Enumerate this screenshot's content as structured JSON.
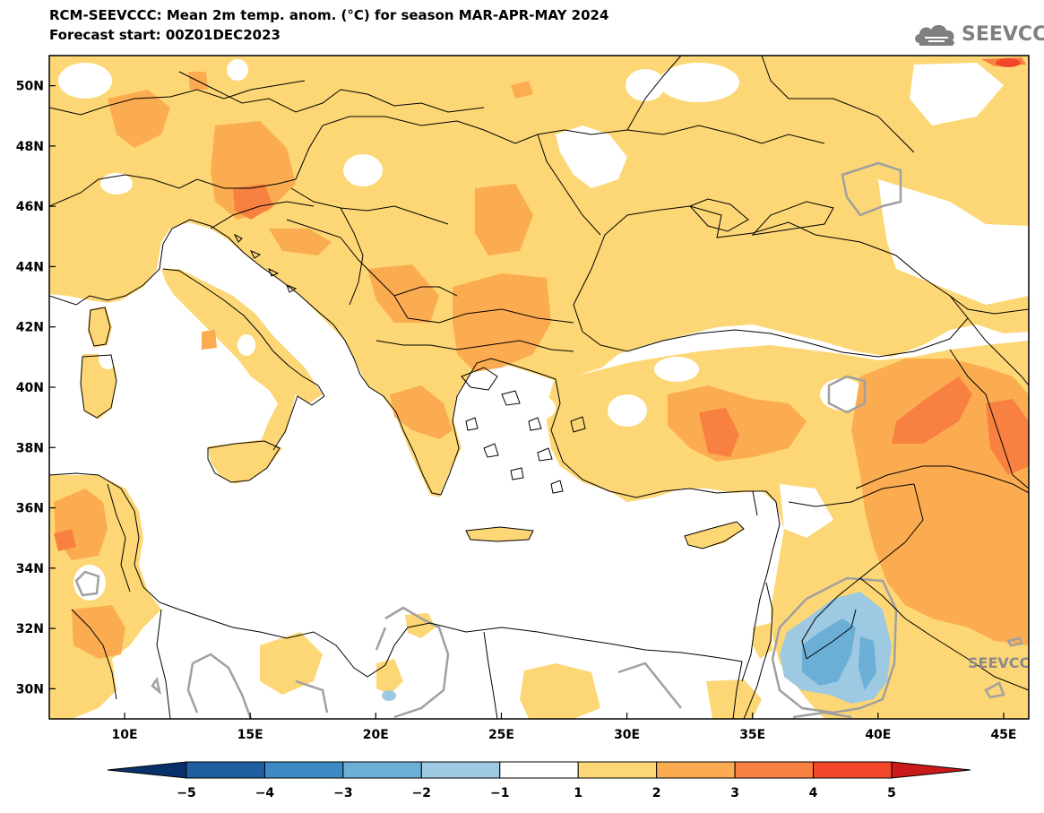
{
  "header": {
    "title_line1": "RCM-SEEVCCC: Mean 2m temp. anom. (°C) for season MAR-APR-MAY 2024",
    "title_line2": "Forecast start: 00Z01DEC2023"
  },
  "logo": {
    "text": "SEEVCCC",
    "icon": "cloud-icon"
  },
  "watermark": "SEEVCCC",
  "map": {
    "extent": {
      "lon_min": 7.0,
      "lon_max": 46.0,
      "lat_min": 29.0,
      "lat_max": 51.0
    },
    "lon_ticks": [
      {
        "value": 10,
        "label": "10E"
      },
      {
        "value": 15,
        "label": "15E"
      },
      {
        "value": 20,
        "label": "20E"
      },
      {
        "value": 25,
        "label": "25E"
      },
      {
        "value": 30,
        "label": "30E"
      },
      {
        "value": 35,
        "label": "35E"
      },
      {
        "value": 40,
        "label": "40E"
      },
      {
        "value": 45,
        "label": "45E"
      }
    ],
    "lat_ticks": [
      {
        "value": 50,
        "label": "50N"
      },
      {
        "value": 48,
        "label": "48N"
      },
      {
        "value": 46,
        "label": "46N"
      },
      {
        "value": 44,
        "label": "44N"
      },
      {
        "value": 42,
        "label": "42N"
      },
      {
        "value": 40,
        "label": "40N"
      },
      {
        "value": 38,
        "label": "38N"
      },
      {
        "value": 36,
        "label": "36N"
      },
      {
        "value": 34,
        "label": "34N"
      },
      {
        "value": 32,
        "label": "32N"
      },
      {
        "value": 30,
        "label": "30N"
      }
    ],
    "colors": {
      "land_base": "#fdd775",
      "anom_2_3": "#fcac50",
      "anom_3_4": "#f88040",
      "anom_neg_1_2": "#9ec9e2",
      "anom_neg_2_3": "#6baed6",
      "contour": "#a0a0a0",
      "coast": "#000000"
    }
  },
  "colorbar": {
    "levels": [
      "−5",
      "−4",
      "−3",
      "−2",
      "−1",
      "1",
      "2",
      "3",
      "4",
      "5"
    ],
    "colors": [
      "#08306b",
      "#1f5fa0",
      "#3e8ac4",
      "#6baed6",
      "#9ec9e2",
      "#ffffff",
      "#fdd775",
      "#fcac50",
      "#f88040",
      "#f3472c",
      "#cb1a1a"
    ]
  }
}
